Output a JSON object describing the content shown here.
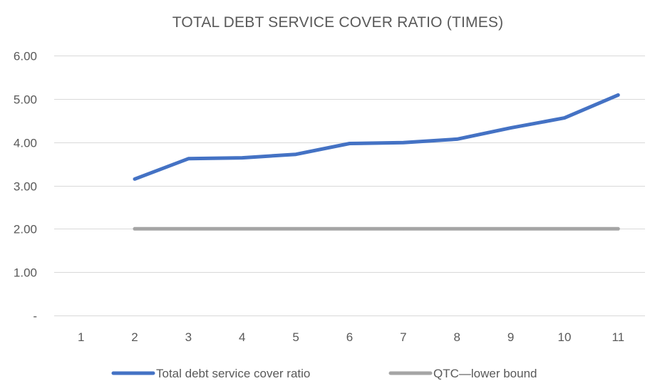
{
  "chart_data": {
    "type": "line",
    "title": "TOTAL DEBT SERVICE COVER RATIO (TIMES)",
    "xlabel": "",
    "ylabel": "",
    "categories": [
      "1",
      "2",
      "3",
      "4",
      "5",
      "6",
      "7",
      "8",
      "9",
      "10",
      "11"
    ],
    "ylim": [
      0,
      6
    ],
    "y_ticks": [
      {
        "value": 0,
        "label": "-"
      },
      {
        "value": 1,
        "label": "1.00"
      },
      {
        "value": 2,
        "label": "2.00"
      },
      {
        "value": 3,
        "label": "3.00"
      },
      {
        "value": 4,
        "label": "4.00"
      },
      {
        "value": 5,
        "label": "5.00"
      },
      {
        "value": 6,
        "label": "6.00"
      }
    ],
    "grid": true,
    "legend_position": "bottom",
    "series": [
      {
        "name": "Total debt service cover ratio",
        "color": "#4472C4",
        "values": [
          null,
          3.15,
          3.62,
          3.64,
          3.72,
          3.97,
          3.99,
          4.07,
          4.33,
          4.56,
          5.09
        ]
      },
      {
        "name": "QTC—lower bound",
        "color": "#A5A5A5",
        "values": [
          null,
          2.0,
          2.0,
          2.0,
          2.0,
          2.0,
          2.0,
          2.0,
          2.0,
          2.0,
          2.0
        ]
      }
    ]
  }
}
